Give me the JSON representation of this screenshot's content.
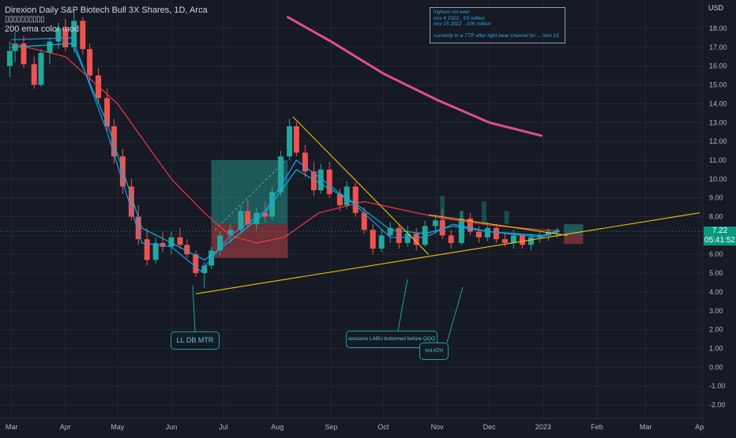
{
  "header": {
    "title": "Direxion Daily S&P Biotech Bull 3X Shares, 1D, Arca",
    "indicator_values": "▯▯▯▯▯▯▯▯▯▯",
    "indicator_label": "200 ema color mod"
  },
  "currency": "USD",
  "last_price": {
    "value": "7.22",
    "countdown": "05:41:52"
  },
  "notes_box": {
    "lines": [
      "highest vol ever",
      "nov 4 2022 , 93 million",
      "nov 15 2022 , 106 million",
      "",
      "currently in a TTR after tight bear channel bo ... Nov 15"
    ]
  },
  "callouts": {
    "ll_db_mtr": "LL DB MTR",
    "sessions": "sessions LABU bottomed before QQQ",
    "vol_ath": "Vol ATH"
  },
  "colors": {
    "background": "#161a25",
    "up": "#26a69a",
    "down": "#ef5350",
    "ema_fast": "#2196f3",
    "ema_mid": "#00bcd4",
    "ema_slow": "#f23645",
    "ema_200": "#e04f8a",
    "trendline": "#f4c20d",
    "price_tag": "#089981"
  },
  "chart_data": {
    "type": "candlestick",
    "y_axis": {
      "min": -2.0,
      "max": 18.0,
      "ticks": [
        "18.00",
        "17.00",
        "16.00",
        "15.00",
        "14.00",
        "13.00",
        "12.00",
        "11.00",
        "10.00",
        "9.00",
        "8.00",
        "7.00",
        "6.00",
        "5.00",
        "4.00",
        "3.00",
        "2.00",
        "1.00",
        "0.00",
        "-1.00",
        "-2.00"
      ]
    },
    "x_axis": {
      "months": [
        "Mar",
        "Apr",
        "May",
        "Jun",
        "Jul",
        "Aug",
        "Sep",
        "Oct",
        "Nov",
        "Dec",
        "2023",
        "Feb",
        "Mar",
        "Ap"
      ]
    },
    "series": [
      {
        "name": "200 ema color mod",
        "points": [
          [
            "2022-08-07",
            18.6
          ],
          [
            "2022-09-01",
            17.3
          ],
          [
            "2022-10-01",
            15.6
          ],
          [
            "2022-11-01",
            14.2
          ],
          [
            "2022-12-01",
            13.0
          ],
          [
            "2022-12-31",
            12.3
          ]
        ]
      },
      {
        "points": [
          [
            "2022-03-01",
            17.2
          ],
          [
            "2022-04-01",
            16.5
          ],
          [
            "2022-05-01",
            14.0
          ],
          [
            "2022-06-01",
            10.0
          ],
          [
            "2022-06-20",
            8.2
          ],
          [
            "2022-07-05",
            7.0
          ],
          [
            "2022-07-20",
            6.6
          ],
          [
            "2022-08-05",
            6.9
          ],
          [
            "2022-08-25",
            8.2
          ],
          [
            "2022-09-20",
            8.8
          ],
          [
            "2022-10-15",
            8.3
          ],
          [
            "2022-11-05",
            7.9
          ],
          [
            "2022-12-01",
            7.55
          ],
          [
            "2022-12-31",
            7.3
          ],
          [
            "2023-01-10",
            7.25
          ]
        ]
      },
      {
        "points": [
          [
            "2022-03-01",
            17.0
          ],
          [
            "2022-04-05",
            17.2
          ],
          [
            "2022-04-25",
            13.0
          ],
          [
            "2022-05-15",
            7.4
          ],
          [
            "2022-06-01",
            6.6
          ],
          [
            "2022-06-20",
            5.7
          ],
          [
            "2022-07-05",
            6.7
          ],
          [
            "2022-07-25",
            8.2
          ],
          [
            "2022-08-12",
            10.5
          ],
          [
            "2022-08-25",
            9.8
          ],
          [
            "2022-09-15",
            8.7
          ],
          [
            "2022-10-05",
            7.3
          ],
          [
            "2022-10-25",
            7.1
          ],
          [
            "2022-11-10",
            7.5
          ],
          [
            "2022-12-01",
            7.2
          ],
          [
            "2022-12-31",
            7.0
          ],
          [
            "2023-01-10",
            7.2
          ]
        ]
      },
      {
        "points": [
          [
            "2022-03-01",
            17.4
          ],
          [
            "2022-04-05",
            17.5
          ],
          [
            "2022-04-25",
            12.5
          ],
          [
            "2022-05-15",
            6.6
          ],
          [
            "2022-06-01",
            6.4
          ],
          [
            "2022-06-18",
            5.1
          ],
          [
            "2022-07-05",
            7.0
          ],
          [
            "2022-07-25",
            8.3
          ],
          [
            "2022-08-12",
            11.0
          ],
          [
            "2022-08-25",
            10.1
          ],
          [
            "2022-09-15",
            8.6
          ],
          [
            "2022-10-05",
            6.9
          ],
          [
            "2022-10-25",
            6.9
          ],
          [
            "2022-11-10",
            7.6
          ],
          [
            "2022-12-01",
            7.2
          ],
          [
            "2022-12-31",
            6.9
          ],
          [
            "2023-01-10",
            7.3
          ]
        ]
      }
    ],
    "candles": [
      [
        "2022-02-28",
        16.0,
        17.3,
        15.4,
        16.8
      ],
      [
        "2022-03-03",
        16.8,
        17.8,
        16.2,
        17.2
      ],
      [
        "2022-03-08",
        17.2,
        17.6,
        15.9,
        16.1
      ],
      [
        "2022-03-14",
        16.1,
        16.5,
        14.8,
        15.0
      ],
      [
        "2022-03-18",
        15.0,
        16.9,
        14.9,
        16.7
      ],
      [
        "2022-03-23",
        16.7,
        17.5,
        16.1,
        17.3
      ],
      [
        "2022-03-28",
        17.3,
        18.3,
        16.9,
        18.0
      ],
      [
        "2022-04-01",
        18.0,
        18.5,
        16.8,
        17.0
      ],
      [
        "2022-04-06",
        17.0,
        18.9,
        16.7,
        18.4
      ],
      [
        "2022-04-11",
        18.4,
        18.6,
        16.6,
        16.9
      ],
      [
        "2022-04-15",
        16.9,
        17.2,
        15.2,
        15.5
      ],
      [
        "2022-04-20",
        15.5,
        15.9,
        14.0,
        14.3
      ],
      [
        "2022-04-25",
        14.3,
        14.8,
        12.5,
        12.8
      ],
      [
        "2022-04-29",
        12.8,
        13.2,
        10.8,
        11.2
      ],
      [
        "2022-05-04",
        11.2,
        11.6,
        9.2,
        9.6
      ],
      [
        "2022-05-09",
        9.6,
        10.0,
        7.8,
        8.0
      ],
      [
        "2022-05-13",
        8.0,
        8.6,
        6.5,
        6.8
      ],
      [
        "2022-05-18",
        6.8,
        7.4,
        5.4,
        5.7
      ],
      [
        "2022-05-23",
        5.7,
        6.9,
        5.5,
        6.6
      ],
      [
        "2022-05-27",
        6.6,
        7.2,
        6.1,
        6.4
      ],
      [
        "2022-06-01",
        6.4,
        7.2,
        6.0,
        6.9
      ],
      [
        "2022-06-06",
        6.9,
        7.4,
        6.3,
        6.5
      ],
      [
        "2022-06-10",
        6.5,
        6.8,
        5.8,
        6.0
      ],
      [
        "2022-06-15",
        6.0,
        6.2,
        4.8,
        5.0
      ],
      [
        "2022-06-20",
        5.0,
        5.6,
        4.2,
        5.4
      ],
      [
        "2022-06-24",
        5.4,
        6.4,
        5.2,
        6.2
      ],
      [
        "2022-06-29",
        6.2,
        7.2,
        5.9,
        7.0
      ],
      [
        "2022-07-05",
        7.0,
        7.6,
        6.6,
        7.3
      ],
      [
        "2022-07-11",
        7.3,
        8.6,
        7.1,
        8.3
      ],
      [
        "2022-07-15",
        8.3,
        8.9,
        7.4,
        7.6
      ],
      [
        "2022-07-20",
        7.6,
        8.5,
        7.3,
        8.2
      ],
      [
        "2022-07-25",
        8.2,
        8.8,
        7.7,
        8.0
      ],
      [
        "2022-07-29",
        8.0,
        9.6,
        7.8,
        9.3
      ],
      [
        "2022-08-03",
        9.3,
        11.5,
        9.1,
        11.2
      ],
      [
        "2022-08-08",
        11.2,
        13.2,
        11.0,
        12.8
      ],
      [
        "2022-08-12",
        12.8,
        13.0,
        11.2,
        11.4
      ],
      [
        "2022-08-17",
        11.4,
        11.8,
        10.1,
        10.4
      ],
      [
        "2022-08-22",
        10.4,
        10.9,
        9.1,
        9.4
      ],
      [
        "2022-08-26",
        9.4,
        10.8,
        9.2,
        10.5
      ],
      [
        "2022-08-31",
        10.5,
        10.9,
        9.0,
        9.2
      ],
      [
        "2022-09-06",
        9.2,
        9.5,
        8.3,
        8.6
      ],
      [
        "2022-09-10",
        8.6,
        9.9,
        8.4,
        9.6
      ],
      [
        "2022-09-15",
        9.6,
        9.8,
        8.0,
        8.2
      ],
      [
        "2022-09-20",
        8.2,
        8.5,
        7.1,
        7.3
      ],
      [
        "2022-09-25",
        7.3,
        7.6,
        6.0,
        6.3
      ],
      [
        "2022-09-30",
        6.3,
        7.3,
        6.1,
        7.0
      ],
      [
        "2022-10-05",
        7.0,
        7.7,
        6.6,
        7.4
      ],
      [
        "2022-10-10",
        7.4,
        7.6,
        6.3,
        6.6
      ],
      [
        "2022-10-15",
        6.6,
        7.5,
        6.4,
        7.1
      ],
      [
        "2022-10-20",
        7.1,
        7.4,
        6.2,
        6.5
      ],
      [
        "2022-10-25",
        6.5,
        7.8,
        6.4,
        7.5
      ],
      [
        "2022-10-31",
        7.5,
        8.1,
        7.1,
        7.8
      ],
      [
        "2022-11-04",
        7.8,
        8.4,
        6.8,
        7.0
      ],
      [
        "2022-11-09",
        7.0,
        7.3,
        6.3,
        6.6
      ],
      [
        "2022-11-15",
        6.6,
        8.3,
        6.5,
        7.9
      ],
      [
        "2022-11-20",
        7.9,
        8.2,
        7.0,
        7.2
      ],
      [
        "2022-11-25",
        7.2,
        7.5,
        6.6,
        6.9
      ],
      [
        "2022-11-30",
        6.9,
        7.7,
        6.7,
        7.4
      ],
      [
        "2022-12-05",
        7.4,
        7.6,
        6.6,
        6.8
      ],
      [
        "2022-12-10",
        6.8,
        7.1,
        6.4,
        6.6
      ],
      [
        "2022-12-15",
        6.6,
        7.3,
        6.3,
        7.0
      ],
      [
        "2022-12-20",
        7.0,
        7.1,
        6.3,
        6.5
      ],
      [
        "2022-12-25",
        6.5,
        7.1,
        6.2,
        6.9
      ],
      [
        "2022-12-30",
        6.9,
        7.2,
        6.6,
        7.0
      ],
      [
        "2023-01-04",
        7.0,
        7.4,
        6.7,
        7.2
      ],
      [
        "2023-01-09",
        7.2,
        7.4,
        6.9,
        7.22
      ]
    ],
    "trendlines": [
      {
        "points": [
          [
            "2022-06-15",
            3.9
          ],
          [
            "2023-04-01",
            8.2
          ]
        ]
      },
      {
        "points": [
          [
            "2022-08-10",
            13.3
          ],
          [
            "2022-10-27",
            6.0
          ]
        ]
      },
      {
        "points": [
          [
            "2022-10-27",
            8.1
          ],
          [
            "2023-01-15",
            7.0
          ]
        ]
      }
    ],
    "zones": [
      {
        "kind": "target",
        "x": [
          "2022-06-24",
          "2022-08-07"
        ],
        "y": [
          7.6,
          11.0
        ]
      },
      {
        "kind": "stop",
        "x": [
          "2022-06-24",
          "2022-08-07"
        ],
        "y": [
          5.8,
          7.6
        ]
      },
      {
        "kind": "target",
        "x": [
          "2023-01-13",
          "2023-01-24"
        ],
        "y": [
          7.05,
          7.6
        ]
      },
      {
        "kind": "stop",
        "x": [
          "2023-01-13",
          "2023-01-24"
        ],
        "y": [
          6.55,
          7.05
        ]
      }
    ],
    "volume_bars": [
      {
        "x": "2022-11-04",
        "y": [
          7.55,
          9.1
        ]
      },
      {
        "x": "2022-11-15",
        "y": [
          7.6,
          8.3
        ]
      },
      {
        "x": "2022-11-28",
        "y": [
          7.6,
          8.8
        ]
      },
      {
        "x": "2022-12-11",
        "y": [
          7.6,
          8.3
        ]
      }
    ]
  }
}
